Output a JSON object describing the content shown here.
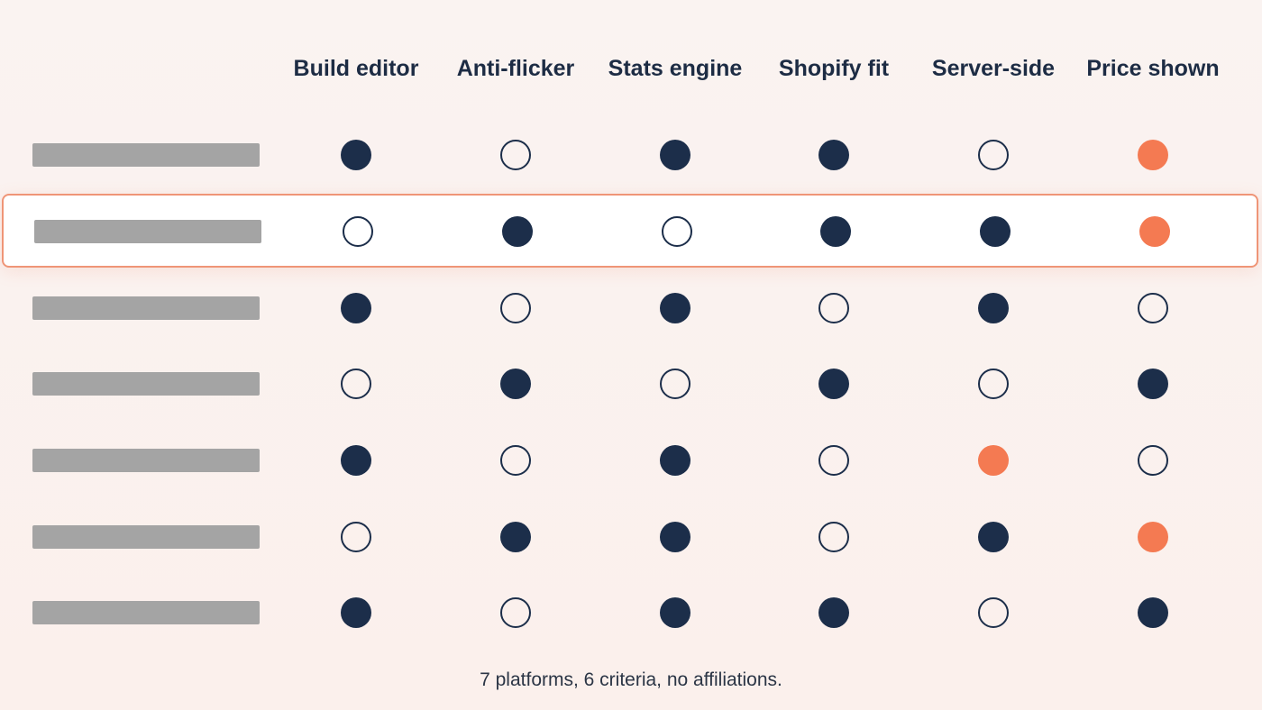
{
  "columns": [
    {
      "label": "Build editor"
    },
    {
      "label": "Anti-flicker"
    },
    {
      "label": "Stats engine"
    },
    {
      "label": "Shopify fit"
    },
    {
      "label": "Server-side"
    },
    {
      "label": "Price shown"
    }
  ],
  "rows": [
    {
      "highlighted": false,
      "cells": [
        "full",
        "empty",
        "full",
        "full",
        "empty",
        "accent"
      ]
    },
    {
      "highlighted": true,
      "cells": [
        "empty",
        "full",
        "empty",
        "full",
        "full",
        "accent"
      ]
    },
    {
      "highlighted": false,
      "cells": [
        "full",
        "empty",
        "full",
        "empty",
        "full",
        "empty"
      ]
    },
    {
      "highlighted": false,
      "cells": [
        "empty",
        "full",
        "empty",
        "full",
        "empty",
        "full"
      ]
    },
    {
      "highlighted": false,
      "cells": [
        "full",
        "empty",
        "full",
        "empty",
        "accent",
        "empty"
      ]
    },
    {
      "highlighted": false,
      "cells": [
        "empty",
        "full",
        "full",
        "empty",
        "full",
        "accent"
      ]
    },
    {
      "highlighted": false,
      "cells": [
        "full",
        "empty",
        "full",
        "full",
        "empty",
        "full"
      ]
    }
  ],
  "legend": {
    "full": "filled-navy-dot",
    "empty": "outlined-navy-dot",
    "accent": "filled-coral-dot"
  },
  "colors": {
    "navy": "#1c2e4a",
    "coral": "#f47a52",
    "highlight_border": "#ef9577",
    "placeholder_bar": "#a4a4a4"
  },
  "footnote": "7 platforms, 6 criteria, no affiliations."
}
